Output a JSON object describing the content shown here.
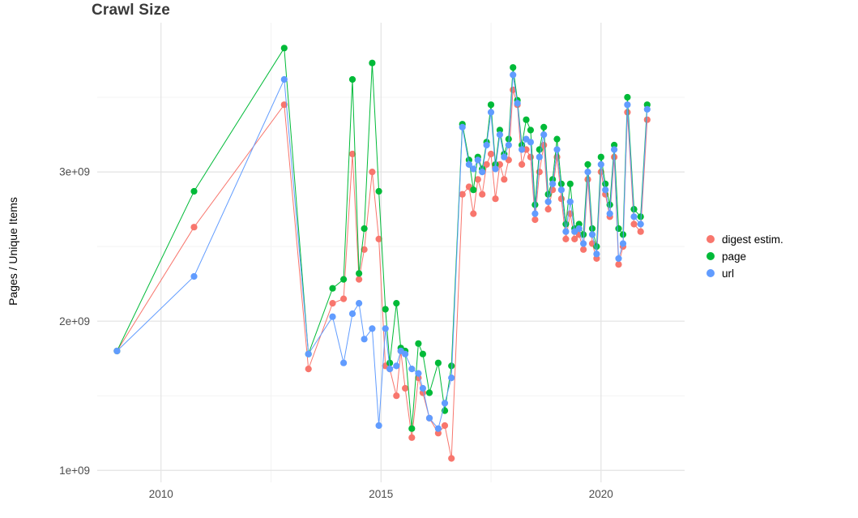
{
  "chart_data": {
    "type": "line",
    "title": "Crawl Size",
    "ylabel": "Pages / Unique Items",
    "xlabel": "",
    "background": "#ffffff",
    "grid": {
      "major_color": "#e3e3e3",
      "minor_color": "#f3f3f3"
    },
    "legend_position": "right",
    "xlim": [
      2008.55,
      2021.9
    ],
    "ylim_1e9": [
      0.92,
      4.0
    ],
    "x_major_ticks": [
      {
        "v": 2010,
        "label": "2010"
      },
      {
        "v": 2015,
        "label": "2015"
      },
      {
        "v": 2020,
        "label": "2020"
      }
    ],
    "x_minor_ticks": [
      2012.5,
      2017.5
    ],
    "y_major_ticks": [
      {
        "v": 1.0,
        "label": "1e+09"
      },
      {
        "v": 2.0,
        "label": "2e+09"
      },
      {
        "v": 3.0,
        "label": "3e+09"
      }
    ],
    "y_minor_ticks": [
      1.5,
      2.5,
      3.5
    ],
    "y_unit": "1e9 pages / unique items",
    "x_years": [
      2009.0,
      2010.75,
      2012.8,
      2013.35,
      2013.9,
      2014.15,
      2014.35,
      2014.5,
      2014.62,
      2014.8,
      2014.95,
      2015.1,
      2015.2,
      2015.35,
      2015.45,
      2015.55,
      2015.7,
      2015.85,
      2015.95,
      2016.1,
      2016.3,
      2016.45,
      2016.6,
      2016.85,
      2017.0,
      2017.1,
      2017.2,
      2017.3,
      2017.4,
      2017.5,
      2017.6,
      2017.7,
      2017.8,
      2017.9,
      2018.0,
      2018.1,
      2018.2,
      2018.3,
      2018.4,
      2018.5,
      2018.6,
      2018.7,
      2018.8,
      2018.9,
      2019.0,
      2019.1,
      2019.2,
      2019.3,
      2019.4,
      2019.5,
      2019.6,
      2019.7,
      2019.8,
      2019.9,
      2020.0,
      2020.1,
      2020.2,
      2020.3,
      2020.4,
      2020.5,
      2020.6,
      2020.75,
      2020.9,
      2021.05
    ],
    "series": [
      {
        "name": "digest estim.",
        "color": "#F8766D",
        "values_1e9": [
          1.8,
          2.63,
          3.45,
          1.68,
          2.12,
          2.15,
          3.12,
          2.28,
          2.48,
          3.0,
          2.55,
          1.7,
          1.68,
          1.5,
          1.8,
          1.55,
          1.22,
          1.62,
          1.52,
          1.35,
          1.25,
          1.3,
          1.08,
          2.85,
          2.9,
          2.72,
          2.95,
          2.85,
          3.05,
          3.12,
          2.82,
          3.05,
          2.95,
          3.08,
          3.55,
          3.45,
          3.05,
          3.15,
          3.1,
          2.68,
          3.0,
          3.18,
          2.75,
          2.88,
          3.1,
          2.82,
          2.55,
          2.72,
          2.55,
          2.58,
          2.48,
          2.95,
          2.52,
          2.42,
          3.0,
          2.85,
          2.7,
          3.1,
          2.38,
          2.5,
          3.4,
          2.65,
          2.6,
          3.35
        ]
      },
      {
        "name": "page",
        "color": "#00BA38",
        "values_1e9": [
          1.8,
          2.87,
          3.83,
          1.78,
          2.22,
          2.28,
          3.62,
          2.32,
          2.62,
          3.73,
          2.87,
          2.08,
          1.72,
          2.12,
          1.82,
          1.8,
          1.28,
          1.85,
          1.78,
          1.52,
          1.72,
          1.4,
          1.7,
          3.32,
          3.08,
          2.88,
          3.1,
          3.02,
          3.2,
          3.45,
          3.05,
          3.28,
          3.12,
          3.22,
          3.7,
          3.48,
          3.18,
          3.35,
          3.28,
          2.78,
          3.15,
          3.3,
          2.85,
          2.95,
          3.22,
          2.92,
          2.65,
          2.92,
          2.62,
          2.65,
          2.58,
          3.05,
          2.62,
          2.5,
          3.1,
          2.92,
          2.78,
          3.18,
          2.62,
          2.58,
          3.5,
          2.75,
          2.7,
          3.45
        ]
      },
      {
        "name": "url",
        "color": "#619CFF",
        "values_1e9": [
          1.8,
          2.3,
          3.62,
          1.78,
          2.03,
          1.72,
          2.05,
          2.12,
          1.88,
          1.95,
          1.3,
          1.95,
          1.68,
          1.7,
          1.8,
          1.78,
          1.68,
          1.65,
          1.55,
          1.35,
          1.28,
          1.45,
          1.62,
          3.3,
          3.05,
          3.02,
          3.08,
          3.0,
          3.18,
          3.4,
          3.02,
          3.25,
          3.1,
          3.18,
          3.65,
          3.46,
          3.15,
          3.22,
          3.2,
          2.72,
          3.1,
          3.25,
          2.8,
          2.92,
          3.15,
          2.88,
          2.6,
          2.8,
          2.6,
          2.62,
          2.52,
          3.0,
          2.58,
          2.45,
          3.05,
          2.88,
          2.72,
          3.15,
          2.42,
          2.52,
          3.45,
          2.7,
          2.65,
          3.42
        ]
      }
    ]
  }
}
